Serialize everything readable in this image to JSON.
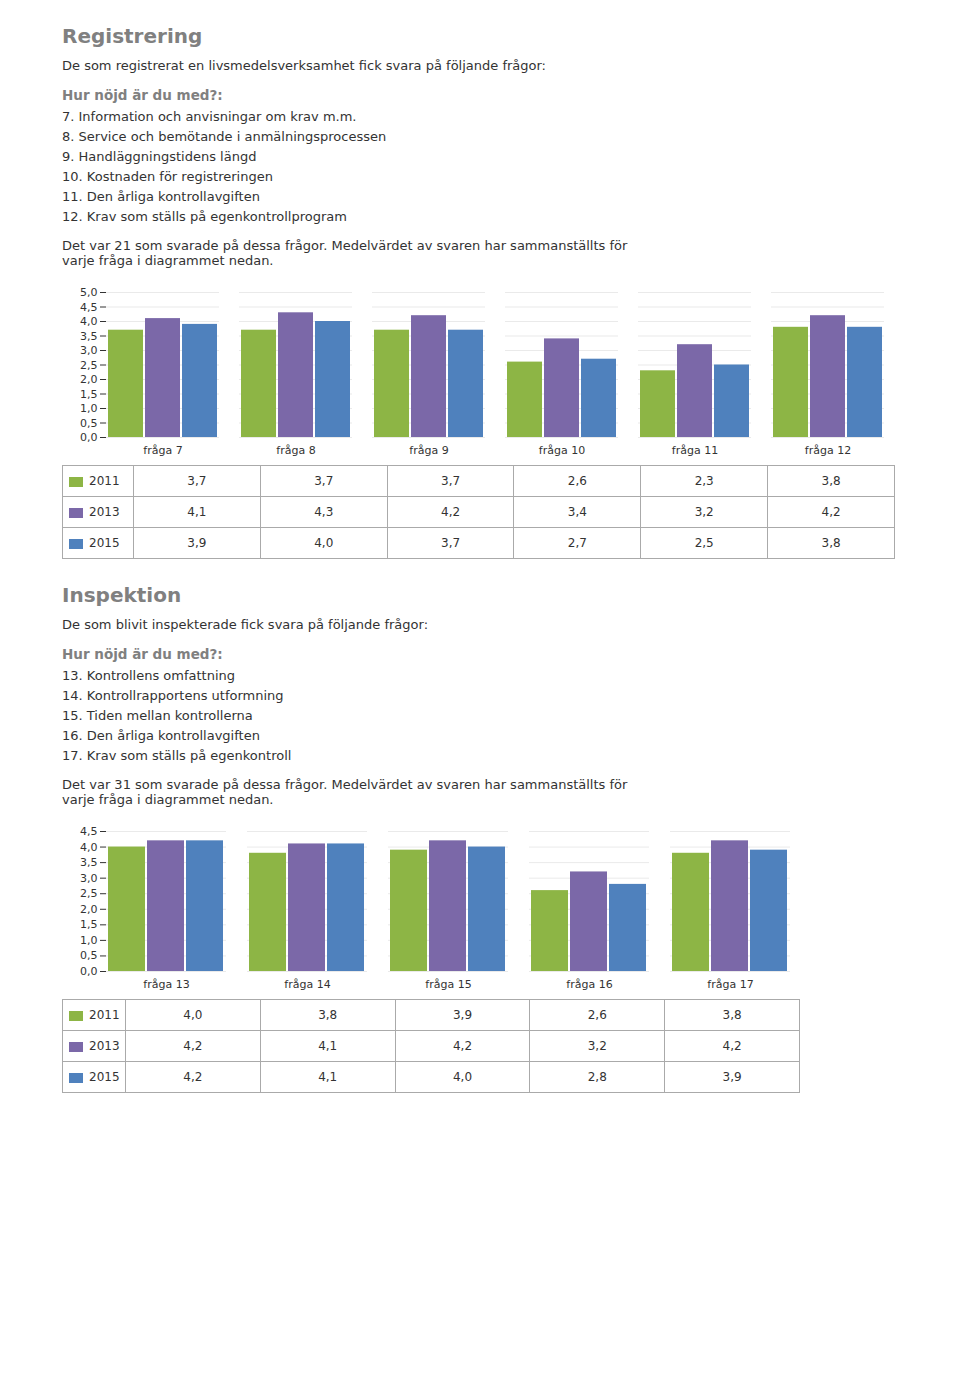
{
  "chart_data": [
    {
      "type": "bar",
      "title": "Registrering",
      "subtitle": "De som registrerat en livsmedelsverksamhet fick svara på följande frågor:",
      "annotations": [
        "Hur nöjd är du med?:",
        "7. Information och anvisningar om krav m.m.",
        "8. Service och bemötande i anmälningsprocessen",
        "9. Handläggningstidens längd",
        "10. Kostnaden för registreringen",
        "11. Den årliga kontrollavgiften",
        "12. Krav som ställs på egenkontrollprogram",
        "Det var 21 som svarade på dessa frågor. Medelvärdet av svaren har sammanställts för\nvarje fråga i diagrammet nedan."
      ],
      "categories": [
        "fråga 7",
        "fråga 8",
        "fråga 9",
        "fråga 10",
        "fråga 11",
        "fråga 12"
      ],
      "series": [
        {
          "name": "2011",
          "color": "#8db545",
          "values": [
            3.7,
            3.7,
            3.7,
            2.6,
            2.3,
            3.8
          ],
          "value_labels": [
            "3,7",
            "3,7",
            "3,7",
            "2,6",
            "2,3",
            "3,8"
          ]
        },
        {
          "name": "2013",
          "color": "#7b68a8",
          "values": [
            4.1,
            4.3,
            4.2,
            3.4,
            3.2,
            4.2
          ],
          "value_labels": [
            "4,1",
            "4,3",
            "4,2",
            "3,4",
            "3,2",
            "4,2"
          ]
        },
        {
          "name": "2015",
          "color": "#4f81bd",
          "values": [
            3.9,
            4.0,
            3.7,
            2.7,
            2.5,
            3.8
          ],
          "value_labels": [
            "3,9",
            "4,0",
            "3,7",
            "2,7",
            "2,5",
            "3,8"
          ]
        }
      ],
      "ylim": [
        0,
        5
      ],
      "yticks": [
        {
          "value": 0,
          "label": "0,0"
        },
        {
          "value": 0.5,
          "label": "0,5"
        },
        {
          "value": 1,
          "label": "1,0"
        },
        {
          "value": 1.5,
          "label": "1,5"
        },
        {
          "value": 2,
          "label": "2,0"
        },
        {
          "value": 2.5,
          "label": "2,5"
        },
        {
          "value": 3,
          "label": "3,0"
        },
        {
          "value": 3.5,
          "label": "3,5"
        },
        {
          "value": 4,
          "label": "4,0"
        },
        {
          "value": 4.5,
          "label": "4,5"
        },
        {
          "value": 5,
          "label": "5,0"
        }
      ],
      "grid": true
    },
    {
      "type": "bar",
      "title": "Inspektion",
      "subtitle": "De som blivit inspekterade fick svara på följande frågor:",
      "annotations": [
        "Hur nöjd är du med?:",
        "13. Kontrollens omfattning",
        "14. Kontrollrapportens utformning",
        "15. Tiden mellan kontrollerna",
        "16. Den årliga kontrollavgiften",
        "17. Krav som ställs på egenkontroll",
        "Det var 31 som svarade på dessa frågor. Medelvärdet av svaren har sammanställts för\nvarje fråga i diagrammet nedan."
      ],
      "categories": [
        "fråga 13",
        "fråga 14",
        "fråga 15",
        "fråga 16",
        "fråga 17"
      ],
      "series": [
        {
          "name": "2011",
          "color": "#8db545",
          "values": [
            4.0,
            3.8,
            3.9,
            2.6,
            3.8
          ],
          "value_labels": [
            "4,0",
            "3,8",
            "3,9",
            "2,6",
            "3,8"
          ]
        },
        {
          "name": "2013",
          "color": "#7b68a8",
          "values": [
            4.2,
            4.1,
            4.2,
            3.2,
            4.2
          ],
          "value_labels": [
            "4,2",
            "4,1",
            "4,2",
            "3,2",
            "4,2"
          ]
        },
        {
          "name": "2015",
          "color": "#4f81bd",
          "values": [
            4.2,
            4.1,
            4.0,
            2.8,
            3.9
          ],
          "value_labels": [
            "4,2",
            "4,1",
            "4,0",
            "2,8",
            "3,9"
          ]
        }
      ],
      "ylim": [
        0,
        4.5
      ],
      "yticks": [
        {
          "value": 0.0,
          "label": "0,0"
        },
        {
          "value": 0.5,
          "label": "0,5"
        },
        {
          "value": 1.0,
          "label": "1,0"
        },
        {
          "value": 1.5,
          "label": "1,5"
        },
        {
          "value": 2.0,
          "label": "2,0"
        },
        {
          "value": 2.5,
          "label": "2,5"
        },
        {
          "value": 3.0,
          "label": "3,0"
        },
        {
          "value": 3.5,
          "label": "3,5"
        },
        {
          "value": 4.0,
          "label": "4,0"
        },
        {
          "value": 4.5,
          "label": "4,5"
        }
      ],
      "grid": true
    }
  ]
}
